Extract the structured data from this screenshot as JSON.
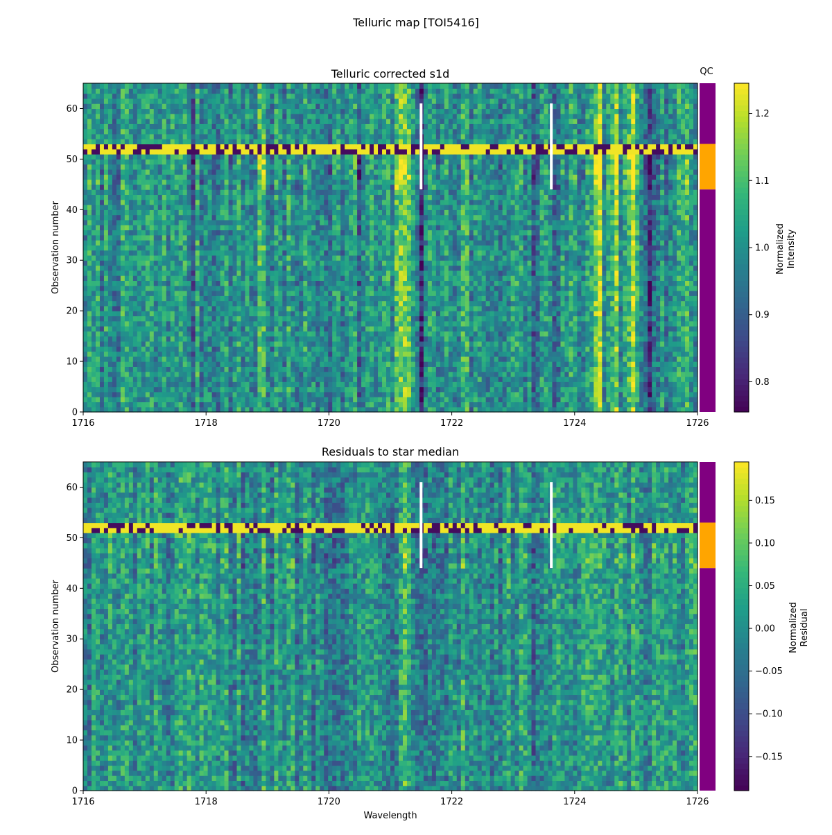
{
  "figure_title": "Telluric map [TOI5416]",
  "qc_label": "QC",
  "qc_colors": {
    "good": "#800080",
    "bad": "#ffa500"
  },
  "chart_data": [
    {
      "type": "heatmap",
      "title": "Telluric corrected s1d",
      "xlabel": "",
      "ylabel": "Observation number",
      "xlim": [
        1716,
        1726
      ],
      "ylim": [
        0,
        65
      ],
      "x_ticks": [
        1716,
        1718,
        1720,
        1722,
        1724,
        1726
      ],
      "y_ticks": [
        0,
        10,
        20,
        30,
        40,
        50,
        60
      ],
      "colormap": "viridis",
      "colorbar": {
        "label": [
          "Normalized",
          "Intensity"
        ],
        "vmin": 0.755,
        "vmax": 1.245,
        "ticks": [
          0.8,
          0.9,
          1.0,
          1.1,
          1.2
        ],
        "tick_labels": [
          "0.8",
          "0.9",
          "1.0",
          "1.1",
          "1.2"
        ]
      },
      "qc_strip": [
        {
          "from": 0,
          "to": 44,
          "status": "good"
        },
        {
          "from": 44,
          "to": 53,
          "status": "bad"
        },
        {
          "from": 53,
          "to": 65,
          "status": "good"
        }
      ],
      "features": [
        {
          "wavelength": 1721.2,
          "kind": "emission",
          "strength": 0.9,
          "width": 0.14
        },
        {
          "wavelength": 1721.5,
          "kind": "absorption",
          "strength": 0.6,
          "width": 0.05
        },
        {
          "wavelength": 1723.35,
          "kind": "absorption",
          "strength": 0.8,
          "width": 0.05
        },
        {
          "wavelength": 1723.65,
          "kind": "absorption",
          "strength": 0.8,
          "width": 0.05
        },
        {
          "wavelength": 1724.4,
          "kind": "emission",
          "strength": 0.7,
          "width": 0.1
        },
        {
          "wavelength": 1724.65,
          "kind": "emission",
          "strength": 0.6,
          "width": 0.1
        },
        {
          "wavelength": 1724.95,
          "kind": "emission",
          "strength": 0.7,
          "width": 0.1
        },
        {
          "wavelength": 1725.2,
          "kind": "absorption",
          "strength": 0.8,
          "width": 0.05
        },
        {
          "wavelength": 1722.2,
          "kind": "emission",
          "strength": 0.6,
          "width": 0.06
        },
        {
          "wavelength": 1718.9,
          "kind": "emission",
          "strength": 0.6,
          "width": 0.08
        },
        {
          "wavelength": 1717.5,
          "kind": "emission",
          "strength": 0.4,
          "width": 0.08
        },
        {
          "wavelength": 1720.5,
          "kind": "absorption",
          "strength": 0.4,
          "width": 0.04
        },
        {
          "wavelength": 1719.3,
          "kind": "absorption",
          "strength": 0.3,
          "width": 0.04
        },
        {
          "wavelength": 1717.8,
          "kind": "absorption",
          "strength": 0.35,
          "width": 0.04
        },
        {
          "wavelength": 1725.8,
          "kind": "emission",
          "strength": 0.5,
          "width": 0.08
        }
      ],
      "masked_segments": [
        {
          "wavelength": 1721.5,
          "from": 44,
          "to": 61
        },
        {
          "wavelength": 1723.62,
          "from": 44,
          "to": 61
        }
      ]
    },
    {
      "type": "heatmap",
      "title": "Residuals to star median",
      "xlabel": "Wavelength",
      "ylabel": "Observation number",
      "xlim": [
        1716,
        1726
      ],
      "ylim": [
        0,
        65
      ],
      "x_ticks": [
        1716,
        1718,
        1720,
        1722,
        1724,
        1726
      ],
      "y_ticks": [
        0,
        10,
        20,
        30,
        40,
        50,
        60
      ],
      "colormap": "viridis",
      "colorbar": {
        "label": [
          "Normalized",
          "Residual"
        ],
        "vmin": -0.19,
        "vmax": 0.195,
        "ticks": [
          0.15,
          0.1,
          0.05,
          0.0,
          -0.05,
          -0.1,
          -0.15
        ],
        "tick_labels": [
          "0.15",
          "0.10",
          "0.05",
          "0.00",
          "−0.05",
          "−0.10",
          "−0.15"
        ]
      },
      "qc_strip": [
        {
          "from": 0,
          "to": 44,
          "status": "good"
        },
        {
          "from": 44,
          "to": 53,
          "status": "bad"
        },
        {
          "from": 53,
          "to": 65,
          "status": "good"
        }
      ],
      "features": [
        {
          "wavelength": 1721.2,
          "kind": "emission",
          "strength": 0.45,
          "width": 0.12
        },
        {
          "wavelength": 1724.4,
          "kind": "emission",
          "strength": 0.3,
          "width": 0.08
        },
        {
          "wavelength": 1718.9,
          "kind": "emission",
          "strength": 0.3,
          "width": 0.06
        },
        {
          "wavelength": 1723.35,
          "kind": "absorption",
          "strength": 0.25,
          "width": 0.05
        },
        {
          "wavelength": 1725.0,
          "kind": "emission",
          "strength": 0.25,
          "width": 0.08
        },
        {
          "wavelength": 1722.2,
          "kind": "emission",
          "strength": 0.3,
          "width": 0.06
        }
      ],
      "masked_segments": [
        {
          "wavelength": 1721.5,
          "from": 44,
          "to": 61
        },
        {
          "wavelength": 1723.62,
          "from": 44,
          "to": 61
        }
      ]
    }
  ]
}
